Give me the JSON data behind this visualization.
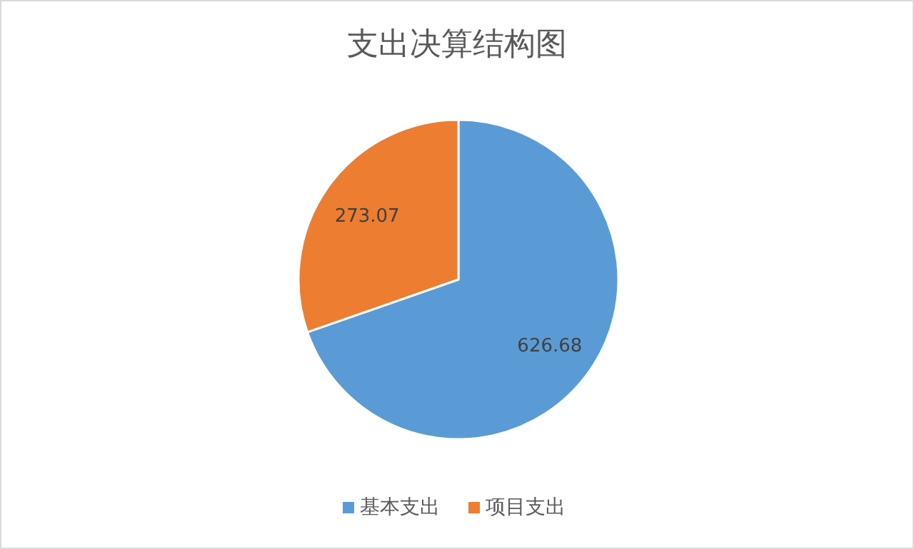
{
  "chart_data": {
    "type": "pie",
    "title": "支出决算结构图",
    "categories": [
      "基本支出",
      "项目支出"
    ],
    "values": [
      626.68,
      273.07
    ],
    "colors": [
      "#5b9bd5",
      "#ed7d31"
    ],
    "data_labels": true,
    "legend": "bottom"
  }
}
